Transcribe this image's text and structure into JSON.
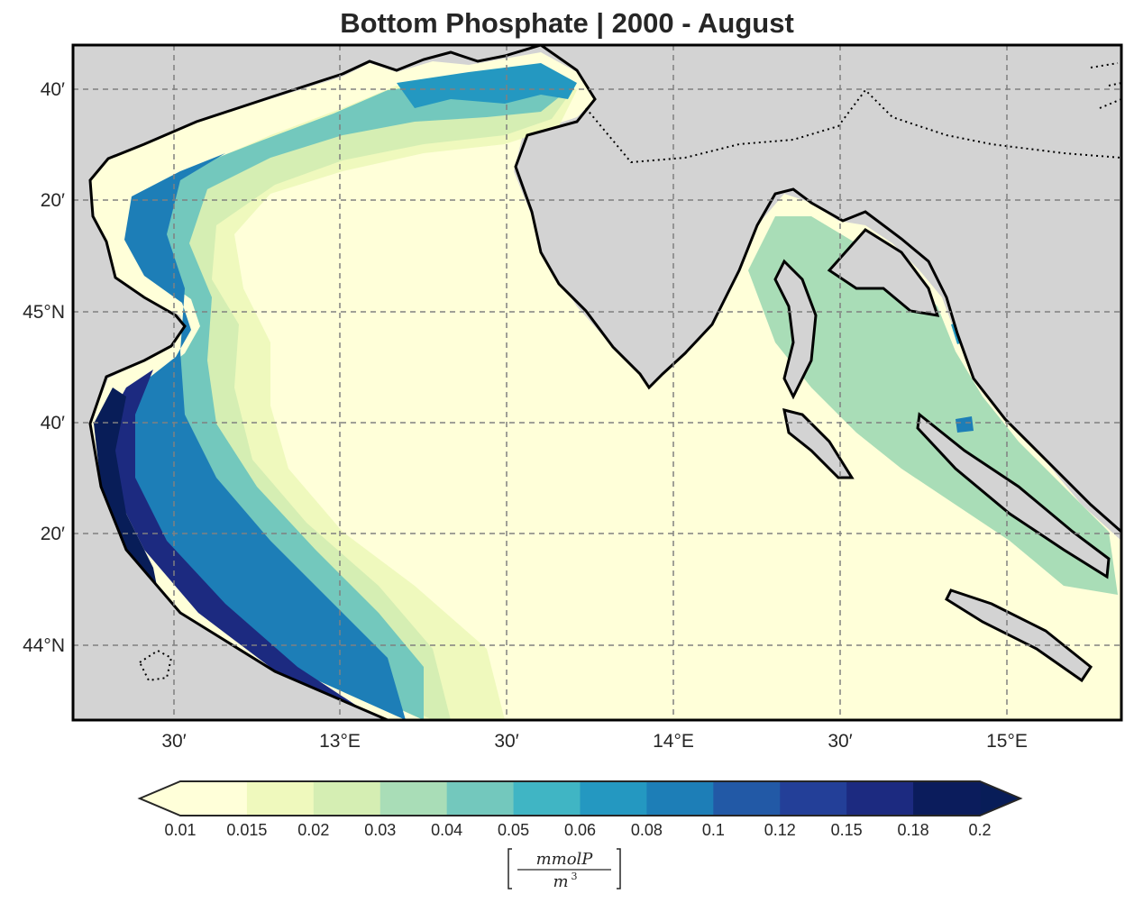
{
  "title": "Bottom Phosphate | 2000 - August",
  "lat_ticks": [
    "40′",
    "20′",
    "45°N",
    "40′",
    "20′",
    "44°N"
  ],
  "lon_ticks": [
    "30′",
    "13°E",
    "30′",
    "14°E",
    "30′",
    "15°E"
  ],
  "colorbar": {
    "levels": [
      "0.01",
      "0.015",
      "0.02",
      "0.03",
      "0.04",
      "0.05",
      "0.06",
      "0.08",
      "0.1",
      "0.12",
      "0.15",
      "0.18",
      "0.2"
    ],
    "colors": [
      "#ffffd9",
      "#eff9bd",
      "#d5eeb3",
      "#a9ddb7",
      "#73c8bd",
      "#40b5c4",
      "#2498c1",
      "#1d7eb7",
      "#2259a6",
      "#233f98",
      "#1c2a80",
      "#0b1c5c"
    ],
    "under_color": "#ffffd9",
    "over_color": "#081d58",
    "unit_numerator": "mmolP",
    "unit_denominator": "m",
    "unit_exponent": "3"
  },
  "map": {
    "land_color": "#d3d3d3",
    "grid_color": "#808080",
    "coast_color": "#000000"
  }
}
